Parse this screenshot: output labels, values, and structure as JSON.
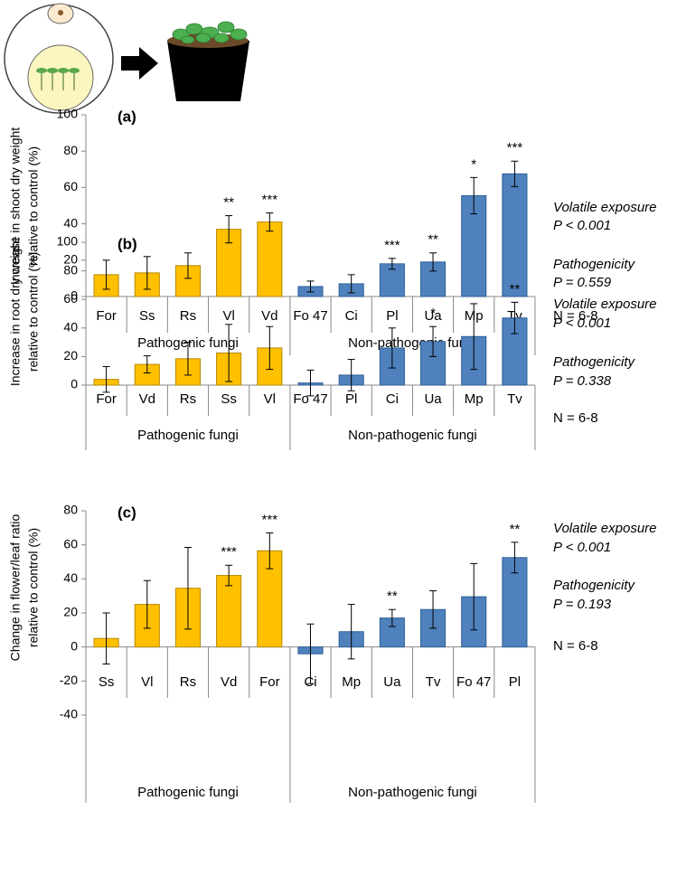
{
  "chart_data": [
    {
      "type": "bar",
      "panel_label": "(a)",
      "y_label": [
        "Increase in shoot dry weight",
        "relative to control (%)"
      ],
      "ylim": [
        0,
        100
      ],
      "yticks": [
        0,
        20,
        40,
        60,
        80,
        100
      ],
      "series": [
        {
          "name": "Pathogenic fungi",
          "color": "#ffc000",
          "categories": [
            "For",
            "Ss",
            "Rs",
            "Vl",
            "Vd"
          ],
          "values": [
            12,
            13,
            17,
            37,
            41
          ],
          "errors": [
            8,
            9,
            7,
            7.5,
            5
          ],
          "stars": [
            null,
            null,
            null,
            "**",
            "***"
          ]
        },
        {
          "name": "Non-pathogenic fungi",
          "color": "#4f81bd",
          "categories": [
            "Fo 47",
            "Ci",
            "Pl",
            "Ua",
            "Mp",
            "Tv"
          ],
          "values": [
            5.5,
            7,
            18,
            19,
            55.5,
            67.5
          ],
          "errors": [
            3,
            5,
            3,
            5,
            10,
            7
          ],
          "stars": [
            null,
            null,
            "***",
            "**",
            "*",
            "***"
          ]
        }
      ],
      "annotations": [
        "Volatile exposure",
        "P < 0.001",
        "Pathogenicity",
        "P = 0.559",
        "N = 6-8"
      ]
    },
    {
      "type": "bar",
      "panel_label": "(b)",
      "y_label": [
        "Increase in root dry weight",
        "relative to control (%)"
      ],
      "ylim": [
        0,
        100
      ],
      "yticks": [
        0,
        20,
        40,
        60,
        80,
        100
      ],
      "series": [
        {
          "name": "Pathogenic fungi",
          "color": "#ffc000",
          "categories": [
            "For",
            "Vd",
            "Rs",
            "Ss",
            "Vl"
          ],
          "values": [
            4,
            14.5,
            18.5,
            22.5,
            26
          ],
          "errors": [
            9,
            6,
            11.5,
            20,
            15
          ],
          "stars": [
            null,
            null,
            null,
            null,
            null
          ]
        },
        {
          "name": "Non-pathogenic fungi",
          "color": "#4f81bd",
          "categories": [
            "Fo 47",
            "Pl",
            "Ci",
            "Ua",
            "Mp",
            "Tv"
          ],
          "values": [
            1.5,
            7,
            26,
            30.5,
            34,
            47
          ],
          "errors": [
            9,
            11,
            14,
            10.5,
            23,
            11
          ],
          "stars": [
            null,
            null,
            null,
            "*",
            null,
            "**"
          ]
        }
      ],
      "annotations": [
        "Volatile exposure",
        "P < 0.001",
        "Pathogenicity",
        "P = 0.338",
        "N = 6-8"
      ]
    },
    {
      "type": "bar",
      "panel_label": "(c)",
      "y_label": [
        "Change in flower/leaf ratio",
        "relative to control (%)"
      ],
      "ylim": [
        -40,
        80
      ],
      "yticks": [
        -40,
        -20,
        0,
        20,
        40,
        60,
        80
      ],
      "series": [
        {
          "name": "Pathogenic fungi",
          "color": "#ffc000",
          "categories": [
            "Ss",
            "Vl",
            "Rs",
            "Vd",
            "For"
          ],
          "values": [
            5,
            25,
            34.5,
            42,
            56.5
          ],
          "errors": [
            15,
            14,
            24,
            6,
            10.5
          ],
          "stars": [
            null,
            null,
            null,
            "***",
            "***"
          ]
        },
        {
          "name": "Non-pathogenic fungi",
          "color": "#4f81bd",
          "categories": [
            "Ci",
            "Mp",
            "Ua",
            "Tv",
            "Fo 47",
            "Pl"
          ],
          "values": [
            -4,
            9,
            17,
            22,
            29.5,
            52.5
          ],
          "errors": [
            17.5,
            16,
            5,
            11,
            19.5,
            9
          ],
          "stars": [
            null,
            null,
            "**",
            null,
            null,
            "**"
          ]
        }
      ],
      "annotations": [
        "Volatile exposure",
        "P < 0.001",
        "Pathogenicity",
        "P = 0.193",
        "N = 6-8"
      ]
    }
  ]
}
